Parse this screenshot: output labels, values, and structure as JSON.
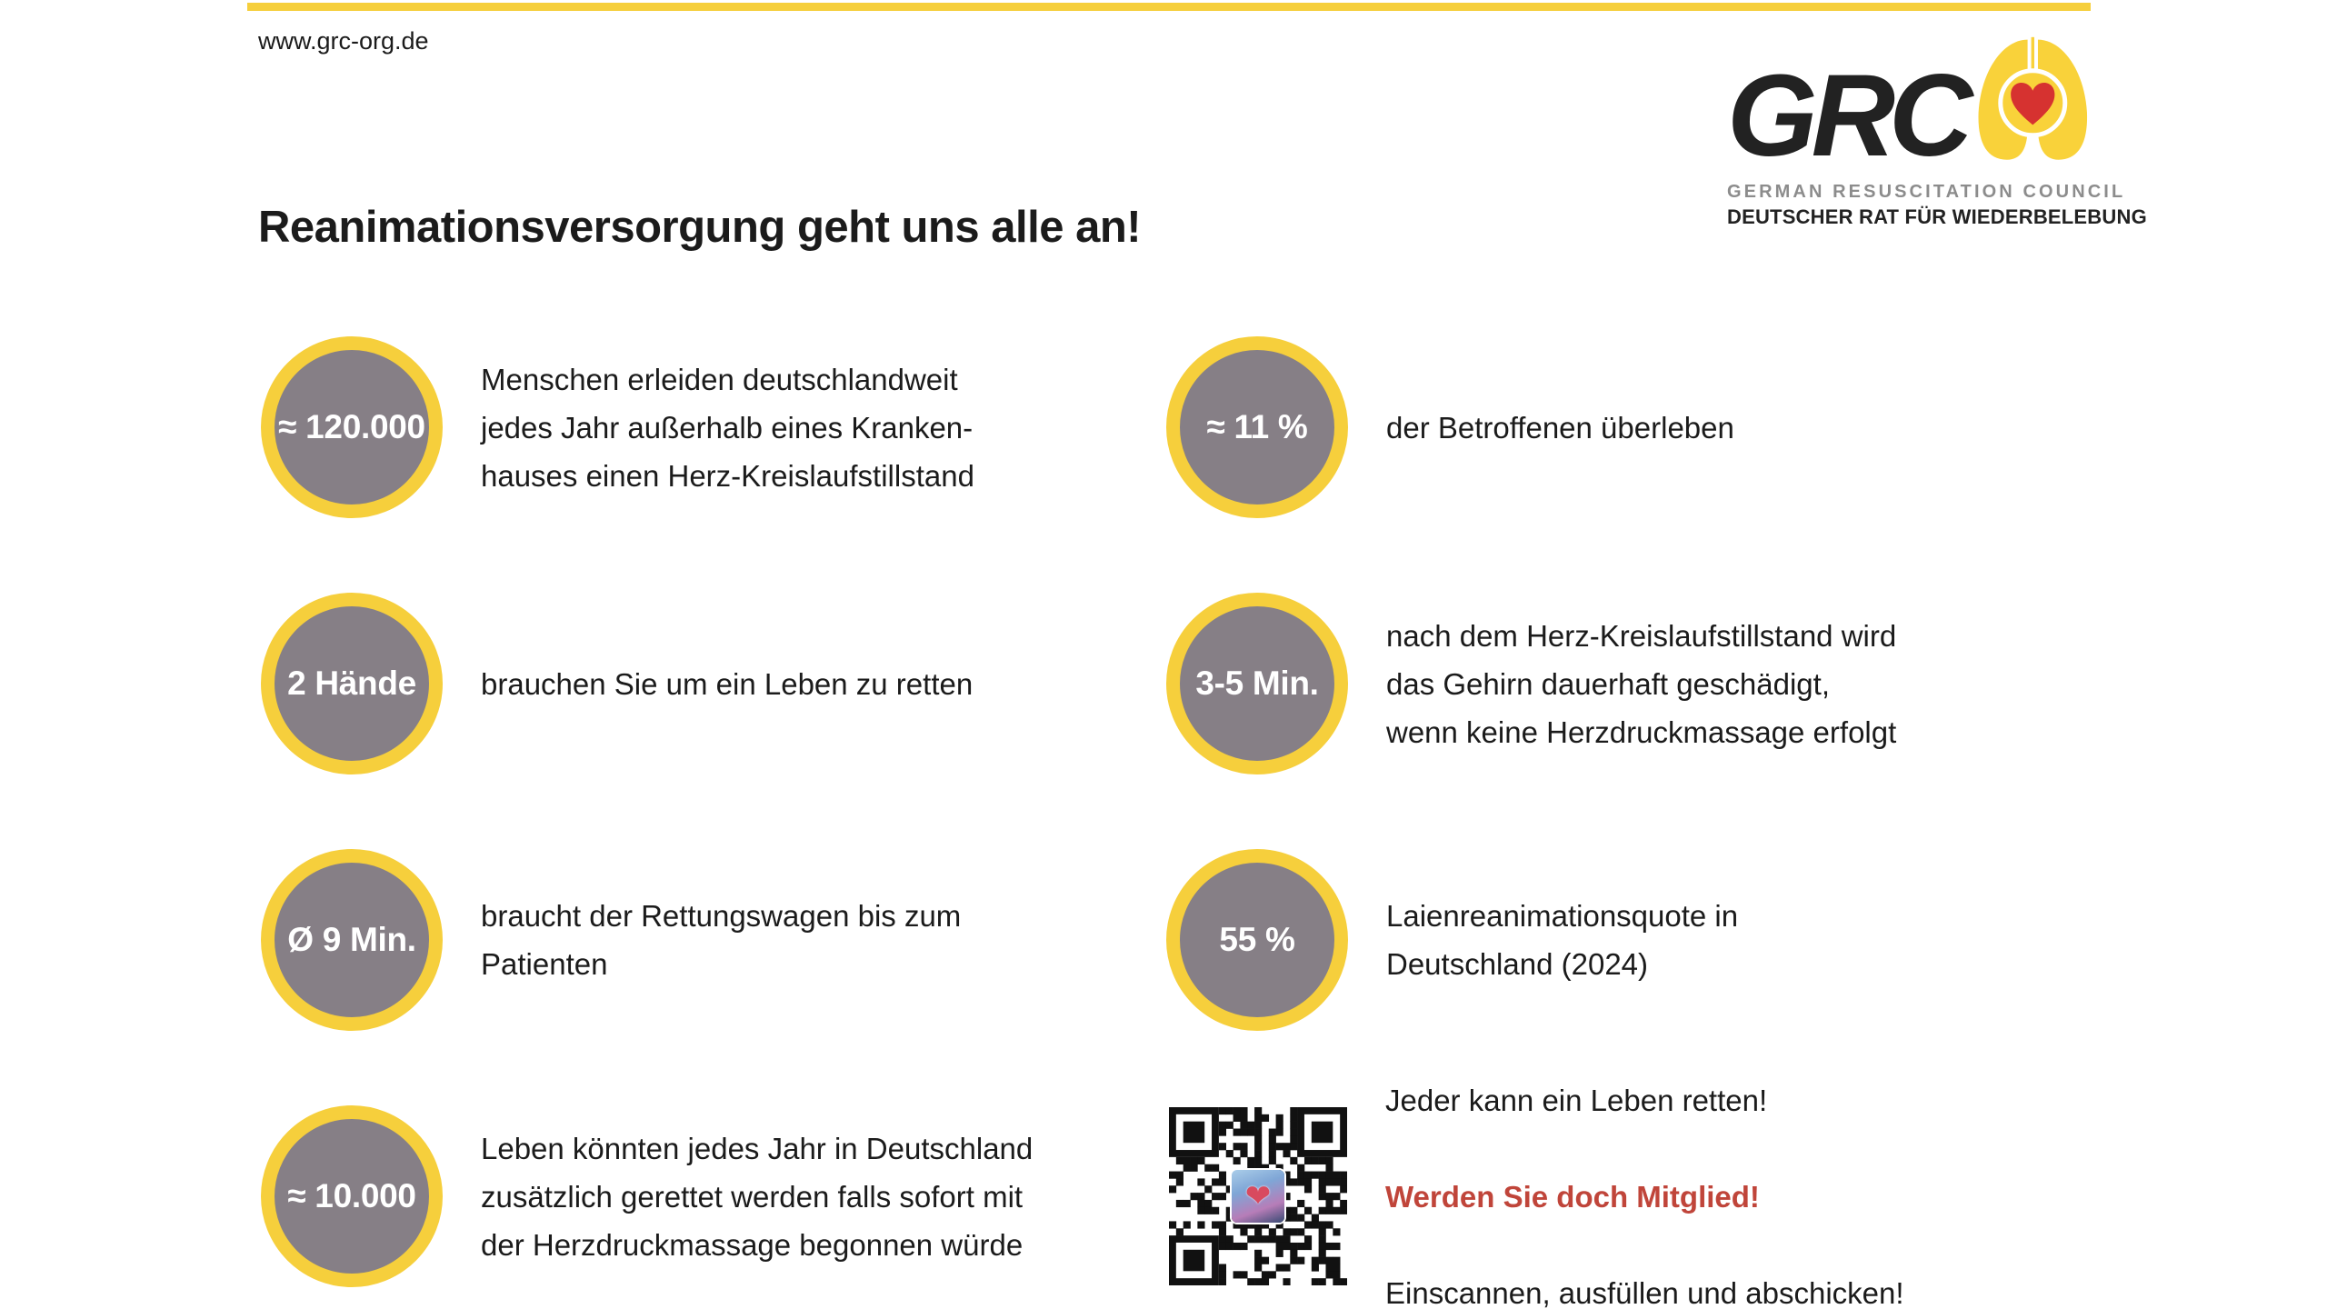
{
  "header": {
    "url": "www.grc-org.de",
    "title": "Reanimationsversorgung geht uns alle an!"
  },
  "logo": {
    "acronym": "GRC",
    "subtitle_en": "GERMAN RESUSCITATION COUNCIL",
    "subtitle_de": "DEUTSCHER RAT FÜR WIEDERBELEBUNG",
    "icon": "lungs-with-heart"
  },
  "colors": {
    "yellow": "#F6CF3C",
    "gray": "#867F86",
    "heart_red": "#D63230",
    "cta_red": "#C0453A",
    "text_dark": "#1B1B1B"
  },
  "stats": [
    {
      "value": "≈ 120.000",
      "text": "Menschen erleiden deutschlandweit\njedes Jahr außerhalb eines Kranken-\nhauses einen Herz-Kreislaufstillstand"
    },
    {
      "value": "≈ 11 %",
      "text": "der Betroffenen überleben"
    },
    {
      "value": "2 Hände",
      "text": "brauchen Sie um ein Leben zu retten"
    },
    {
      "value": "3-5 Min.",
      "text": "nach dem Herz-Kreislaufstillstand wird\ndas Gehirn dauerhaft geschädigt,\nwenn keine Herzdruckmassage erfolgt"
    },
    {
      "value": "Ø 9 Min.",
      "text": "braucht der Rettungswagen bis zum\nPatienten"
    },
    {
      "value": "55 %",
      "text": "Laienreanimationsquote in\nDeutschland (2024)"
    },
    {
      "value": "≈ 10.000",
      "text": "Leben könnten jedes Jahr in Deutschland\nzusätzlich gerettet werden falls sofort mit\nder Herzdruckmassage begonnen würde"
    }
  ],
  "cta": {
    "qr_icon": "qr-code",
    "line1": "Jeder kann ein Leben retten!",
    "line2": "Werden Sie doch Mitglied!",
    "line3": "Einscannen, ausfüllen und abschicken!",
    "heart_glyph": "❤"
  }
}
